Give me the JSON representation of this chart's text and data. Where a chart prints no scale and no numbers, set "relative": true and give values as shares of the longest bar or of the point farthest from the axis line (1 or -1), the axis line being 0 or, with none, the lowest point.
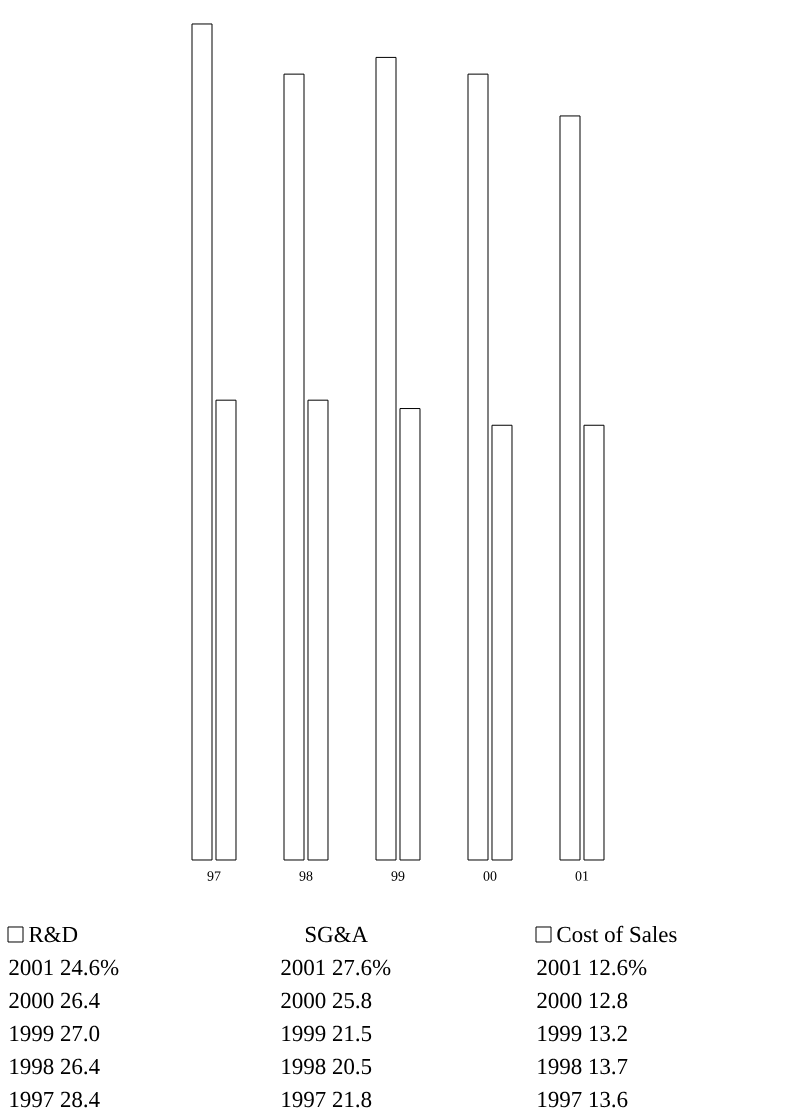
{
  "chart_data": {
    "type": "bar",
    "categories": [
      "97",
      "98",
      "99",
      "00",
      "01"
    ],
    "relative": true,
    "series": [
      {
        "name": "R&D",
        "color": "#ffffff",
        "values": [
          1,
          0.94,
          0.96,
          0.94,
          0.89
        ]
      },
      {
        "name": "Cost of Sales",
        "color": "#ffffff",
        "values": [
          0.55,
          0.55,
          0.54,
          0.52,
          0.52
        ]
      }
    ],
    "legend": "bottom",
    "annotations": [
      "SG&A",
      "2001 24.6%",
      "2000 26.4",
      "1999 27.0",
      "1998 26.4",
      "1997 28.4",
      "2001 27.6%",
      "2000 25.8",
      "1999 21.5",
      "1998 20.5",
      "1997 21.8",
      "2001 12.6%",
      "2000 12.8",
      "1999 13.2",
      "1998 13.7",
      "1997 13.6"
    ]
  }
}
